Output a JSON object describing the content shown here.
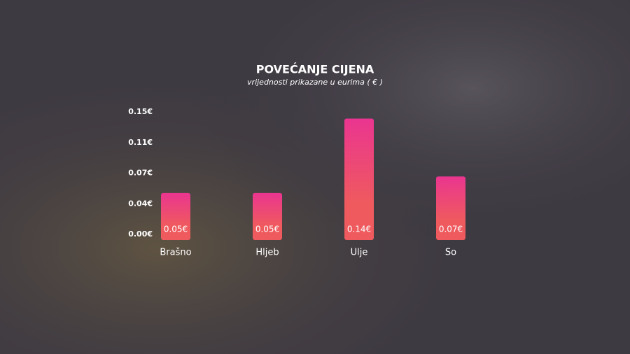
{
  "chart_data": {
    "type": "bar",
    "title": "POVEĆANJE CIJENA",
    "subtitle": "vrijednosti prikazane u eurima ( € )",
    "categories": [
      "Brašno",
      "Hljeb",
      "Ulje",
      "So"
    ],
    "values": [
      0.05,
      0.05,
      0.14,
      0.07
    ],
    "value_labels": [
      "0.05€",
      "0.05€",
      "0.14€",
      "0.07€"
    ],
    "color": "#ef5a5e",
    "ylim": [
      0,
      0.148
    ],
    "yticks": [
      {
        "value": 0,
        "label": "0.00€"
      },
      {
        "value": 0.037,
        "label": "0.04€"
      },
      {
        "value": 0.074,
        "label": "0.07€"
      },
      {
        "value": 0.111,
        "label": "0.11€"
      },
      {
        "value": 0.148,
        "label": "0.15€"
      }
    ],
    "grid": false
  }
}
